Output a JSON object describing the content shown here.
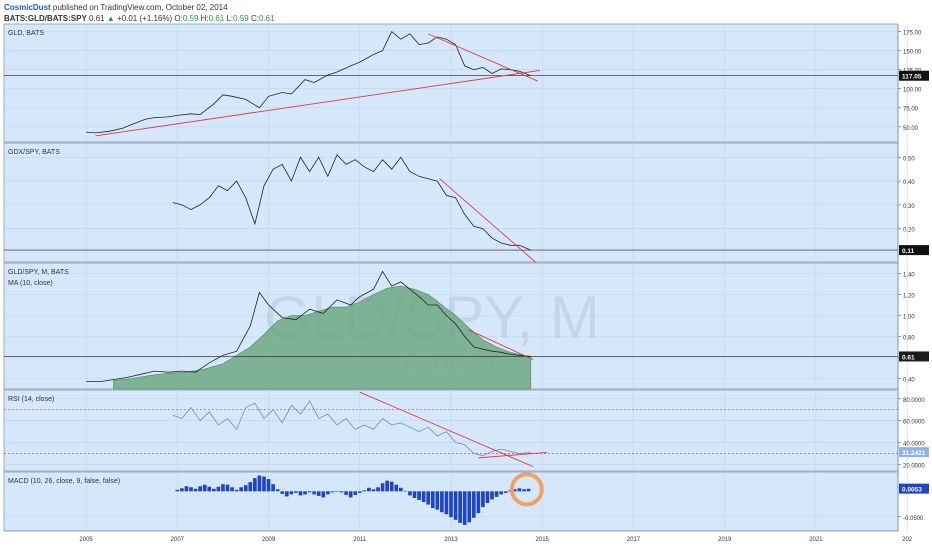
{
  "header": {
    "publisher": "CosmicDust",
    "published_text": " published on TradingView.com, October 02, 2014",
    "symbol": "BATS:GLD/BATS:SPY",
    "last": "0.61",
    "change": "+0.01 (+1.16%)",
    "o_label": "O:",
    "o_value": "0.59",
    "h_label": "H:",
    "h_value": "0.61",
    "l_label": "L:",
    "l_value": "0.59",
    "c_label": "C:",
    "c_value": "0.61",
    "up_color": "#1e9e3a"
  },
  "colors": {
    "pane_bg": "#d5e8fb",
    "line": "#222222",
    "trend": "#e8353a",
    "ma_fill": "#6ea882",
    "rsi_line": "#6f8db5",
    "rsi_level": "#c24a8c",
    "macd_bar": "#1f45c0",
    "circle": "#f2a25f"
  },
  "watermark": {
    "main": "GLD/SPY, M",
    "sub": "GLD/SPY"
  },
  "chart_data": [
    {
      "type": "line",
      "pane": "gld",
      "title": "GLD, BATS",
      "ylim": [
        30,
        185
      ],
      "yticks": [
        "50.00",
        "75.00",
        "100.00",
        "125.00",
        "150.00",
        "175.00"
      ],
      "last_label": "117.05",
      "last_value": 117.05,
      "x": [
        2005.0,
        2005.2,
        2005.5,
        2005.8,
        2006.0,
        2006.3,
        2006.5,
        2006.8,
        2007.0,
        2007.3,
        2007.5,
        2007.8,
        2008.0,
        2008.2,
        2008.5,
        2008.8,
        2009.0,
        2009.3,
        2009.5,
        2009.8,
        2010.0,
        2010.3,
        2010.5,
        2010.8,
        2011.0,
        2011.3,
        2011.5,
        2011.7,
        2011.9,
        2012.1,
        2012.3,
        2012.5,
        2012.7,
        2012.9,
        2013.1,
        2013.3,
        2013.5,
        2013.7,
        2013.9,
        2014.1,
        2014.3,
        2014.5,
        2014.75
      ],
      "y": [
        43,
        42,
        44,
        48,
        53,
        60,
        62,
        63,
        65,
        67,
        66,
        80,
        92,
        90,
        86,
        75,
        90,
        95,
        93,
        112,
        108,
        118,
        122,
        130,
        135,
        145,
        150,
        175,
        165,
        172,
        158,
        160,
        168,
        165,
        158,
        130,
        125,
        128,
        120,
        126,
        125,
        123,
        117
      ]
    },
    {
      "type": "line",
      "pane": "gdx",
      "title": "GDX/SPY, BATS",
      "ylim": [
        0.06,
        0.56
      ],
      "yticks": [
        "0.20",
        "0.30",
        "0.40",
        "0.50"
      ],
      "last_label": "0.11",
      "last_value": 0.11,
      "x": [
        2006.9,
        2007.1,
        2007.3,
        2007.5,
        2007.7,
        2007.9,
        2008.1,
        2008.3,
        2008.5,
        2008.7,
        2008.9,
        2009.1,
        2009.3,
        2009.5,
        2009.7,
        2009.9,
        2010.1,
        2010.3,
        2010.5,
        2010.7,
        2010.9,
        2011.1,
        2011.3,
        2011.5,
        2011.7,
        2011.9,
        2012.1,
        2012.3,
        2012.5,
        2012.7,
        2012.9,
        2013.1,
        2013.3,
        2013.5,
        2013.7,
        2013.9,
        2014.1,
        2014.3,
        2014.5,
        2014.75
      ],
      "y": [
        0.31,
        0.3,
        0.28,
        0.3,
        0.33,
        0.38,
        0.36,
        0.4,
        0.33,
        0.22,
        0.38,
        0.45,
        0.47,
        0.4,
        0.5,
        0.44,
        0.5,
        0.42,
        0.51,
        0.47,
        0.49,
        0.46,
        0.44,
        0.49,
        0.45,
        0.5,
        0.44,
        0.42,
        0.41,
        0.4,
        0.34,
        0.33,
        0.26,
        0.21,
        0.2,
        0.16,
        0.14,
        0.13,
        0.13,
        0.11
      ]
    },
    {
      "type": "area",
      "pane": "ratio",
      "title": "GLD/SPY, M, BATS",
      "indicator": "MA (10, close)",
      "ylim": [
        0.3,
        1.5
      ],
      "yticks": [
        "0.40",
        "0.60",
        "0.80",
        "1.00",
        "1.20",
        "1.40"
      ],
      "last_label": "0.61",
      "last_value": 0.61,
      "price": {
        "x": [
          2005.0,
          2005.3,
          2005.6,
          2005.9,
          2006.2,
          2006.5,
          2006.8,
          2007.1,
          2007.4,
          2007.7,
          2008.0,
          2008.3,
          2008.6,
          2008.8,
          2009.0,
          2009.3,
          2009.6,
          2009.9,
          2010.2,
          2010.5,
          2010.8,
          2011.0,
          2011.3,
          2011.5,
          2011.7,
          2011.9,
          2012.1,
          2012.3,
          2012.5,
          2012.7,
          2012.9,
          2013.1,
          2013.3,
          2013.5,
          2013.7,
          2013.9,
          2014.1,
          2014.3,
          2014.5,
          2014.75
        ],
        "y": [
          0.37,
          0.37,
          0.39,
          0.41,
          0.44,
          0.47,
          0.46,
          0.47,
          0.46,
          0.55,
          0.62,
          0.66,
          0.9,
          1.22,
          1.1,
          0.98,
          0.96,
          1.06,
          1.02,
          1.15,
          1.1,
          1.18,
          1.25,
          1.42,
          1.28,
          1.32,
          1.25,
          1.18,
          1.1,
          1.1,
          1.0,
          0.92,
          0.8,
          0.7,
          0.68,
          0.66,
          0.65,
          0.63,
          0.62,
          0.61
        ]
      },
      "ma": {
        "x": [
          2005.6,
          2006.0,
          2006.4,
          2006.8,
          2007.2,
          2007.6,
          2008.0,
          2008.3,
          2008.6,
          2008.9,
          2009.2,
          2009.5,
          2009.8,
          2010.1,
          2010.4,
          2010.7,
          2011.0,
          2011.3,
          2011.6,
          2011.9,
          2012.2,
          2012.5,
          2012.8,
          2013.1,
          2013.4,
          2013.7,
          2014.0,
          2014.3,
          2014.6,
          2014.75
        ],
        "y": [
          0.38,
          0.4,
          0.43,
          0.45,
          0.46,
          0.49,
          0.54,
          0.62,
          0.7,
          0.82,
          0.95,
          1.0,
          1.0,
          1.04,
          1.08,
          1.08,
          1.13,
          1.2,
          1.26,
          1.28,
          1.25,
          1.2,
          1.1,
          1.0,
          0.88,
          0.77,
          0.7,
          0.65,
          0.62,
          0.61
        ]
      }
    },
    {
      "type": "line",
      "pane": "rsi",
      "title": "RSI (14, close)",
      "ylim": [
        14,
        88
      ],
      "yticks": [
        "20.0000",
        "40.0000",
        "60.0000",
        "80.0000"
      ],
      "levels": [
        70,
        30
      ],
      "last_label": "31.2421",
      "last_value": 31.24,
      "x": [
        2006.9,
        2007.1,
        2007.3,
        2007.5,
        2007.7,
        2007.9,
        2008.1,
        2008.3,
        2008.5,
        2008.7,
        2008.9,
        2009.1,
        2009.3,
        2009.5,
        2009.7,
        2009.9,
        2010.1,
        2010.3,
        2010.5,
        2010.7,
        2010.9,
        2011.1,
        2011.3,
        2011.5,
        2011.7,
        2011.9,
        2012.1,
        2012.3,
        2012.5,
        2012.7,
        2012.9,
        2013.1,
        2013.3,
        2013.5,
        2013.7,
        2013.9,
        2014.1,
        2014.3,
        2014.5,
        2014.75
      ],
      "y": [
        65,
        62,
        72,
        60,
        68,
        56,
        62,
        52,
        72,
        76,
        62,
        70,
        58,
        74,
        66,
        78,
        62,
        66,
        56,
        62,
        52,
        56,
        52,
        62,
        56,
        58,
        54,
        50,
        54,
        46,
        50,
        40,
        38,
        30,
        28,
        32,
        34,
        32,
        30,
        31
      ]
    },
    {
      "type": "bar",
      "pane": "macd",
      "title": "MACD (10, 26, close, 9, false, false)",
      "ylim": [
        -0.078,
        0.038
      ],
      "yticks": [
        "-0.0500"
      ],
      "last_label": "0.0053",
      "last_value": 0.0053,
      "x": [
        2007.0,
        2007.1,
        2007.2,
        2007.3,
        2007.4,
        2007.5,
        2007.6,
        2007.7,
        2007.8,
        2007.9,
        2008.0,
        2008.1,
        2008.2,
        2008.3,
        2008.4,
        2008.5,
        2008.6,
        2008.7,
        2008.8,
        2008.9,
        2009.0,
        2009.1,
        2009.2,
        2009.3,
        2009.4,
        2009.5,
        2009.6,
        2009.7,
        2009.8,
        2009.9,
        2010.0,
        2010.1,
        2010.2,
        2010.3,
        2010.4,
        2010.5,
        2010.6,
        2010.7,
        2010.8,
        2010.9,
        2011.0,
        2011.1,
        2011.2,
        2011.3,
        2011.4,
        2011.5,
        2011.6,
        2011.7,
        2011.8,
        2011.9,
        2012.0,
        2012.1,
        2012.2,
        2012.3,
        2012.4,
        2012.5,
        2012.6,
        2012.7,
        2012.8,
        2012.9,
        2013.0,
        2013.1,
        2013.2,
        2013.3,
        2013.4,
        2013.5,
        2013.6,
        2013.7,
        2013.8,
        2013.9,
        2014.0,
        2014.1,
        2014.2,
        2014.3,
        2014.4,
        2014.5,
        2014.6,
        2014.7
      ],
      "values": [
        0.003,
        0.006,
        0.01,
        0.008,
        0.005,
        0.01,
        0.013,
        0.009,
        0.005,
        0.009,
        0.014,
        0.013,
        0.008,
        0.003,
        0.008,
        0.012,
        0.018,
        0.026,
        0.031,
        0.029,
        0.024,
        0.014,
        0.004,
        -0.005,
        -0.01,
        -0.006,
        -0.003,
        -0.008,
        -0.006,
        -0.002,
        -0.006,
        -0.009,
        -0.012,
        -0.006,
        -0.002,
        0.001,
        -0.002,
        -0.007,
        -0.012,
        -0.007,
        -0.003,
        0.002,
        0.007,
        0.004,
        0.008,
        0.016,
        0.021,
        0.019,
        0.013,
        0.007,
        0.001,
        -0.008,
        -0.013,
        -0.017,
        -0.021,
        -0.026,
        -0.033,
        -0.036,
        -0.041,
        -0.045,
        -0.051,
        -0.056,
        -0.062,
        -0.066,
        -0.061,
        -0.052,
        -0.043,
        -0.031,
        -0.023,
        -0.016,
        -0.011,
        -0.006,
        -0.003,
        0.002,
        0.004,
        0.006,
        0.004,
        0.005
      ]
    }
  ],
  "x_axis": {
    "xlim": [
      2003.2,
      2022.8
    ],
    "ticks": [
      "2005",
      "2007",
      "2009",
      "2011",
      "2013",
      "2015",
      "2017",
      "2019",
      "2021",
      "202"
    ]
  },
  "trendlines": {
    "gld": [
      {
        "x1": 2005.2,
        "y1": 38,
        "x2": 2014.95,
        "y2": 124
      },
      {
        "x1": 2012.5,
        "y1": 172,
        "x2": 2014.9,
        "y2": 110
      }
    ],
    "gdx": [
      {
        "x1": 2012.75,
        "y1": 0.41,
        "x2": 2014.85,
        "y2": 0.06
      }
    ],
    "ratio": [
      {
        "x1": 2013.4,
        "y1": 0.86,
        "x2": 2014.8,
        "y2": 0.58
      }
    ],
    "rsi": [
      {
        "x1": 2011.0,
        "y1": 86,
        "x2": 2014.8,
        "y2": 18
      },
      {
        "x1": 2013.6,
        "y1": 26,
        "x2": 2015.1,
        "y2": 31
      }
    ]
  },
  "highlight_circle": {
    "x": 2014.75,
    "value": 0.0
  }
}
